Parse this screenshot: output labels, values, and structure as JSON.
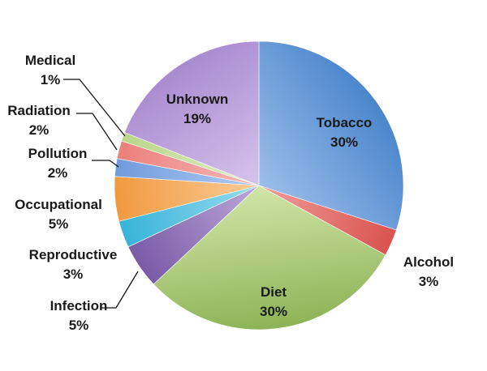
{
  "chart_data": {
    "type": "pie",
    "title": "",
    "unit": "%",
    "slices": [
      {
        "name": "Tobacco",
        "value_text": "30%",
        "value": 30,
        "color": "#4a86cc",
        "color_light": "#a9c6ef"
      },
      {
        "name": "Alcohol",
        "value_text": "3%",
        "value": 3,
        "color": "#d9534f",
        "color_light": "#f3a9a7"
      },
      {
        "name": "Diet",
        "value_text": "30%",
        "value": 30,
        "color": "#8db356",
        "color_light": "#dcedb4"
      },
      {
        "name": "Infection",
        "value_text": "5%",
        "value": 5,
        "color": "#7a5aa6",
        "color_light": "#c7b3e0"
      },
      {
        "name": "Reproductive",
        "value_text": "3%",
        "value": 3,
        "color": "#37b3d9",
        "color_light": "#a8e2f3"
      },
      {
        "name": "Occupational",
        "value_text": "5%",
        "value": 5,
        "color": "#f19a3f",
        "color_light": "#fcd3a5"
      },
      {
        "name": "Pollution",
        "value_text": "2%",
        "value": 2,
        "color": "#6f9bdc",
        "color_light": "#bcd3f3"
      },
      {
        "name": "Radiation",
        "value_text": "2%",
        "value": 2,
        "color": "#ec7f7b",
        "color_light": "#f9c4c2"
      },
      {
        "name": "Medical",
        "value_text": "1%",
        "value": 1,
        "color": "#b9d68a",
        "color_light": "#e5f1cf"
      },
      {
        "name": "Unknown",
        "value_text": "19%",
        "value": 19,
        "color": "#a98bd0",
        "color_light": "#dccdf0"
      }
    ],
    "start_angle_deg": 0,
    "direction": "clockwise",
    "legend": "none"
  }
}
